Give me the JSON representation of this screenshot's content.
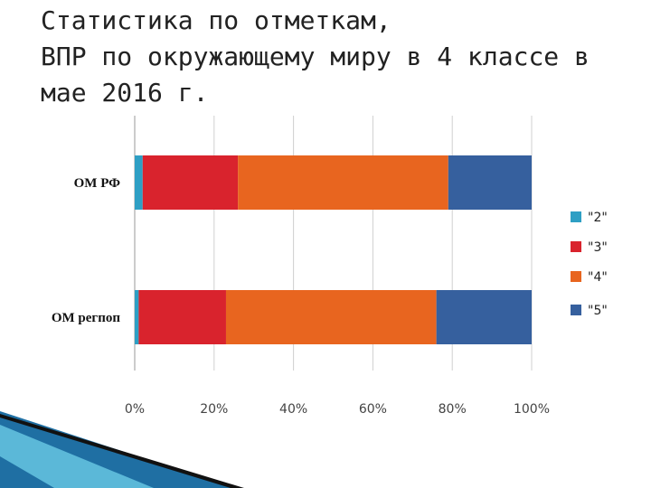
{
  "slide": {
    "title_lines": [
      "Статистика по отметкам,",
      "ВПР по окружающему миру в 4 классе в",
      "мае 2016 г."
    ]
  },
  "chart_data": {
    "type": "stacked-bar-horizontal",
    "categories": [
      "ОМ РФ",
      "ОМ регпоп"
    ],
    "series": [
      {
        "name": "\"2\"",
        "color": "#2e9fc4",
        "values": [
          2,
          1
        ]
      },
      {
        "name": "\"3\"",
        "color": "#d9232d",
        "values": [
          24,
          22
        ]
      },
      {
        "name": "\"4\"",
        "color": "#e8651f",
        "values": [
          53,
          53
        ]
      },
      {
        "name": "\"5\"",
        "color": "#36609e",
        "values": [
          21,
          24
        ]
      }
    ],
    "xlim": [
      0,
      100
    ],
    "xticks": [
      {
        "value": 0,
        "label": "0%"
      },
      {
        "value": 20,
        "label": "20%"
      },
      {
        "value": 40,
        "label": "40%"
      },
      {
        "value": 60,
        "label": "60%"
      },
      {
        "value": 80,
        "label": "80%"
      },
      {
        "value": 100,
        "label": "100%"
      }
    ],
    "grid": true,
    "legend": "right"
  }
}
